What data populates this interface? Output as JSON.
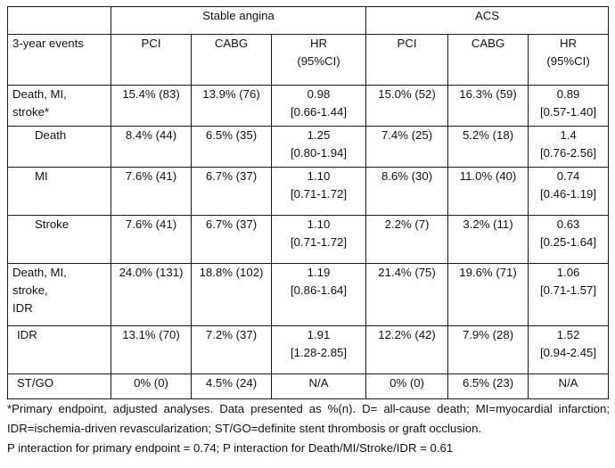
{
  "header": {
    "group_stable": "Stable angina",
    "group_acs": "ACS",
    "events_label": "3-year events",
    "col_pci": "PCI",
    "col_cabg": "CABG",
    "col_hr_line1": "HR",
    "col_hr_line2": "(95%CI)"
  },
  "rows": [
    {
      "event_lines": [
        "Death, MI,",
        "stroke*"
      ],
      "stable_pci": "15.4% (83)",
      "stable_cabg": "13.9% (76)",
      "stable_hr": "0.98",
      "stable_ci": "[0.66-1.44]",
      "acs_pci": "15.0% (52)",
      "acs_cabg": "16.3% (59)",
      "acs_hr": "0.89",
      "acs_ci": "[0.57-1.40]"
    },
    {
      "event_lines": [
        "Death"
      ],
      "stable_pci": "8.4% (44)",
      "stable_cabg": "6.5% (35)",
      "stable_hr": "1.25",
      "stable_ci": "[0.80-1.94]",
      "acs_pci": "7.4% (25)",
      "acs_cabg": "5.2% (18)",
      "acs_hr": "1.4",
      "acs_ci": "[0.76-2.56]"
    },
    {
      "event_lines": [
        "MI"
      ],
      "stable_pci": "7.6% (41)",
      "stable_cabg": "6.7% (37)",
      "stable_hr": "1.10",
      "stable_ci": "[0.71-1.72]",
      "acs_pci": "8.6% (30)",
      "acs_cabg": "11.0% (40)",
      "acs_hr": "0.74",
      "acs_ci": "[0.46-1.19]"
    },
    {
      "event_lines": [
        "Stroke"
      ],
      "stable_pci": "7.6% (41)",
      "stable_cabg": "6.7% (37)",
      "stable_hr": "1.10",
      "stable_ci": "[0.71-1.72]",
      "acs_pci": "2.2% (7)",
      "acs_cabg": "3.2% (11)",
      "acs_hr": "0.63",
      "acs_ci": "[0.25-1.64]"
    },
    {
      "event_lines": [
        "Death, MI,",
        "stroke,",
        "IDR"
      ],
      "stable_pci": "24.0% (131)",
      "stable_cabg": "18.8% (102)",
      "stable_hr": "1.19",
      "stable_ci": "[0.86-1.64]",
      "acs_pci": "21.4% (75)",
      "acs_cabg": "19.6% (71)",
      "acs_hr": "1.06",
      "acs_ci": "[0.71-1.57]"
    },
    {
      "event_lines": [
        "IDR"
      ],
      "stable_pci": "13.1% (70)",
      "stable_cabg": "7.2% (37)",
      "stable_hr": "1.91",
      "stable_ci": "[1.28-2.85]",
      "acs_pci": "12.2% (42)",
      "acs_cabg": "7.9% (28)",
      "acs_hr": "1.52",
      "acs_ci": "[0.94-2.45]"
    },
    {
      "event_lines": [
        "ST/GO"
      ],
      "stable_pci": "0% (0)",
      "stable_cabg": "4.5% (24)",
      "stable_hr": "N/A",
      "stable_ci": "",
      "acs_pci": "0% (0)",
      "acs_cabg": "6.5% (23)",
      "acs_hr": "N/A",
      "acs_ci": ""
    }
  ],
  "footnotes": {
    "line1": "*Primary endpoint, adjusted analyses. Data presented as %(n). D= all-cause death; MI=myocardial infarction; IDR=ischemia-driven revascularization; ST/GO=definite stent thrombosis or graft occlusion.",
    "line2": "P interaction for primary endpoint = 0.74; P interaction for Death/MI/Stroke/IDR = 0.61"
  }
}
